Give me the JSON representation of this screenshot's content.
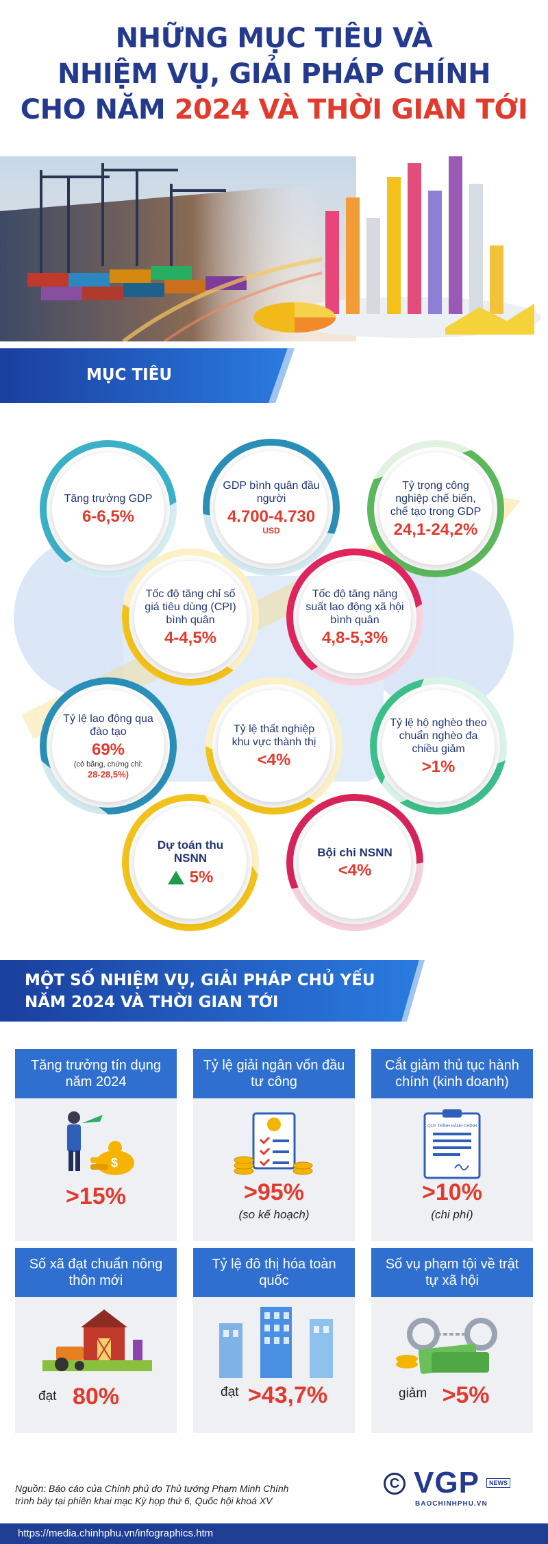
{
  "title": {
    "line1": "NHỮNG MỤC TIÊU VÀ",
    "line2": "NHIỆM VỤ, GIẢI PHÁP CHÍNH",
    "line3_a": "CHO NĂM ",
    "line3_b": "2024 VÀ THỜI GIAN TỚI"
  },
  "section1": {
    "label": "MỤC TIÊU"
  },
  "targets": [
    {
      "label": "Tăng trưởng GDP",
      "value": "6-6,5%",
      "color": "#3bb0c9"
    },
    {
      "label": "GDP bình quân đầu người",
      "value": "4.700-4.730",
      "unit": "USD",
      "color": "#2a8fb8"
    },
    {
      "label": "Tỷ trọng công nghiệp chế biến, chế tạo trong GDP",
      "value": "24,1-24,2%",
      "color": "#5cb85c"
    },
    {
      "label": "Tốc độ tăng chỉ số giá tiêu dùng (CPI) bình quân",
      "value": "4-4,5%",
      "color": "#f2c21b"
    },
    {
      "label": "Tốc độ tăng năng suất lao động xã hội bình quân",
      "value": "4,8-5,3%",
      "color": "#e0245e"
    },
    {
      "label": "Tỷ lệ lao động qua đào tạo",
      "value": "69%",
      "note": "(có bằng, chứng chỉ:",
      "note2": "28-28,5%)",
      "color": "#2a8fb8"
    },
    {
      "label": "Tỷ lệ thất nghiệp khu vực thành thị",
      "value": "<4%",
      "color": "#f2c21b"
    },
    {
      "label": "Tỷ lệ hộ nghèo theo chuẩn nghèo đa chiều giảm",
      "value": ">1%",
      "color": "#3cbf8a"
    },
    {
      "label": "Dự toán thu NSNN",
      "value": "5%",
      "color": "#f2c21b"
    },
    {
      "label": "Bội chi NSNN",
      "value": "<4%",
      "color": "#d6245a"
    }
  ],
  "section2": {
    "line1": "MỘT SỐ NHIỆM VỤ, GIẢI PHÁP CHỦ YẾU",
    "line2": "NĂM 2024 VÀ THỜI GIAN TỚI"
  },
  "tasks": [
    {
      "title": "Tăng trưởng tín dụng năm 2024",
      "value": ">15%",
      "icon": "credit-growth-icon"
    },
    {
      "title": "Tỷ lệ giải ngân vốn đầu tư công",
      "value": ">95%",
      "note": "(so kế hoạch)",
      "icon": "coins-checklist-icon"
    },
    {
      "title": "Cắt giảm thủ tục hành chính (kinh doanh)",
      "value": ">10%",
      "note": "(chi phí)",
      "icon": "document-icon",
      "doc_header": "QUY TRÌNH HÀNH CHÍNH"
    },
    {
      "title": "Số xã đạt chuẩn nông thôn mới",
      "prefix": "đạt",
      "value": "80%",
      "icon": "farm-icon"
    },
    {
      "title": "Tỷ lệ đô thị hóa toàn quốc",
      "prefix": "đạt",
      "value": ">43,7%",
      "icon": "buildings-icon"
    },
    {
      "title": "Số vụ phạm tội về trật tự xã hội",
      "prefix": "giảm",
      "value": ">5%",
      "icon": "handcuffs-icon"
    }
  ],
  "footer": {
    "source_line1": "Nguồn: Báo cáo của Chính phủ do Thủ tướng Phạm Minh Chính",
    "source_line2": "trình bày tại phiên khai mạc Kỳ họp thứ 6, Quốc hội khoá XV",
    "logo": "VGP",
    "logo_tag": "NEWS",
    "logo_sub": "BAOCHINHPHU.VN",
    "url": "https://media.chinhphu.vn/infographics.htm"
  },
  "colors": {
    "navy": "#233a8f",
    "red": "#e23a2c",
    "blue": "#2f6fd0"
  }
}
